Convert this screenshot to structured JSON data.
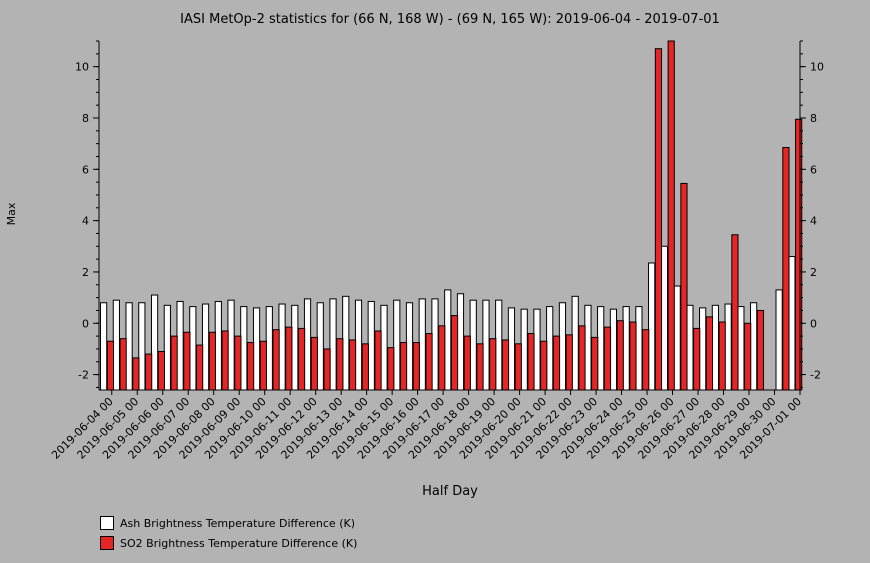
{
  "chart_data": {
    "type": "bar",
    "title": "IASI MetOp-2 statistics for (66 N, 168 W) - (69 N, 165 W): 2019-06-04 - 2019-07-01",
    "xlabel": "Half Day",
    "ylabel": "Max",
    "ylim": [
      -2.6,
      11.0
    ],
    "yticks": [
      -2,
      0,
      2,
      4,
      6,
      8,
      10
    ],
    "xtick_labels": [
      "2019-06-04 00",
      "2019-06-05 00",
      "2019-06-06 00",
      "2019-06-07 00",
      "2019-06-08 00",
      "2019-06-09 00",
      "2019-06-10 00",
      "2019-06-11 00",
      "2019-06-12 00",
      "2019-06-13 00",
      "2019-06-14 00",
      "2019-06-15 00",
      "2019-06-16 00",
      "2019-06-17 00",
      "2019-06-18 00",
      "2019-06-19 00",
      "2019-06-20 00",
      "2019-06-21 00",
      "2019-06-22 00",
      "2019-06-23 00",
      "2019-06-24 00",
      "2019-06-25 00",
      "2019-06-26 00",
      "2019-06-27 00",
      "2019-06-28 00",
      "2019-06-29 00",
      "2019-06-30 00",
      "2019-07-01 00"
    ],
    "legend_placement": "bottom-left",
    "series": [
      {
        "name": "Ash Brightness Temperature Difference (K)",
        "color": "#ffffff",
        "values": [
          0.8,
          0.9,
          0.8,
          0.8,
          1.1,
          0.7,
          0.85,
          0.65,
          0.75,
          0.85,
          0.9,
          0.65,
          0.6,
          0.65,
          0.75,
          0.7,
          0.95,
          0.8,
          0.95,
          1.05,
          0.9,
          0.85,
          0.7,
          0.9,
          0.8,
          0.95,
          0.95,
          1.3,
          1.15,
          0.9,
          0.9,
          0.9,
          0.6,
          0.55,
          0.55,
          0.65,
          0.8,
          1.05,
          0.7,
          0.65,
          0.55,
          0.65,
          0.65,
          2.35,
          3.0,
          1.45,
          0.7,
          0.6,
          0.7,
          0.75,
          0.65,
          0.8,
          null,
          1.3,
          2.6
        ]
      },
      {
        "name": "SO2 Brightness Temperature Difference (K)",
        "color": "#e62626",
        "values": [
          -0.7,
          -0.6,
          -1.35,
          -1.2,
          -1.1,
          -0.5,
          -0.35,
          -0.85,
          -0.35,
          -0.3,
          -0.5,
          -0.75,
          -0.7,
          -0.25,
          -0.15,
          -0.2,
          -0.55,
          -1.0,
          -0.6,
          -0.65,
          -0.8,
          -0.3,
          -0.95,
          -0.75,
          -0.75,
          -0.4,
          -0.1,
          0.3,
          -0.5,
          -0.8,
          -0.6,
          -0.65,
          -0.8,
          -0.4,
          -0.7,
          -0.5,
          -0.45,
          -0.1,
          -0.55,
          -0.15,
          0.1,
          0.05,
          -0.25,
          10.7,
          11.0,
          5.45,
          -0.2,
          0.25,
          0.05,
          3.45,
          0.0,
          0.5,
          null,
          6.85,
          7.95
        ]
      }
    ]
  }
}
